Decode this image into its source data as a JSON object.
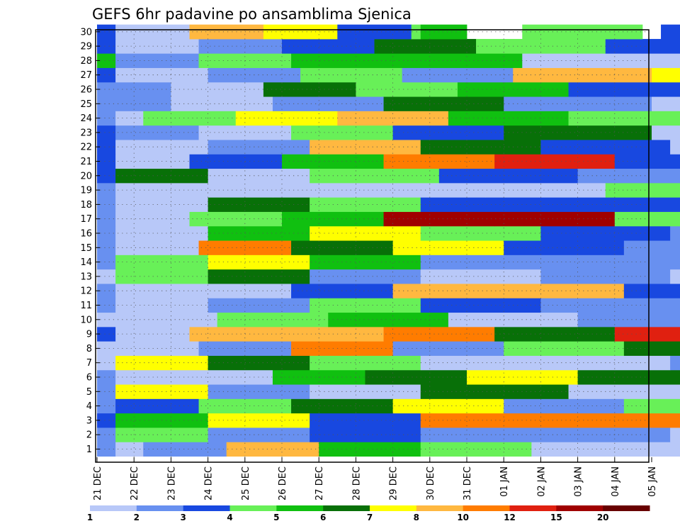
{
  "chart_data": {
    "type": "heatmap",
    "title": "GEFS 6hr padavine po ansamblima Sjenica",
    "xlabel": "",
    "ylabel": "",
    "x_tick_labels": [
      "21 DEC",
      "22 DEC",
      "23 DEC",
      "24 DEC",
      "25 DEC",
      "26 DEC",
      "27 DEC",
      "28 DEC",
      "29 DEC",
      "30 DEC",
      "31 DEC",
      "01 JAN",
      "02 JAN",
      "03 JAN",
      "04 JAN",
      "05 JAN"
    ],
    "y_tick_labels": [
      "1",
      "2",
      "3",
      "4",
      "5",
      "6",
      "7",
      "8",
      "9",
      "10",
      "11",
      "12",
      "13",
      "14",
      "15",
      "16",
      "17",
      "18",
      "19",
      "20",
      "21",
      "22",
      "23",
      "24",
      "25",
      "26",
      "27",
      "28",
      "29",
      "30"
    ],
    "x_steps_per_day": 4,
    "members": 30,
    "grid": true,
    "colorbar": {
      "levels": [
        "1",
        "2",
        "3",
        "4",
        "5",
        "6",
        "7",
        "8",
        "10",
        "12",
        "15",
        "20"
      ],
      "colors": [
        "#b8c8f8",
        "#6890f0",
        "#1848e0",
        "#68f058",
        "#10c010",
        "#087008",
        "#ffff00",
        "#ffb840",
        "#ff7c00",
        "#e02010",
        "#a00000",
        "#680000"
      ]
    },
    "rows": {
      "30": "6|0 3|2 1|8 8|8 7|8 3|8 4|1 5|5 0|6 4|8 4|5 0|2 3|3 4|6 3|4 2|5 2|6 1|29 8|30 1",
      "29": "6|0 3|2 1|9 2|9 3|10 6|11 4|14 3|16 4|24 1",
      "28": "8|0 5|2 2|9 4|10 5|11 5|14 1|16 1|21 1|42 1|46 1|51 4|54 1|55 11|56 9|57 6|58 2",
      "27": "7|0 3|2 1|10 2|10 4|11 2|12 8|15 7|16 3|17",
      "26": "8|0 2|8 1|10 6|10 4|11 5|12 3|13 7|14 1|16 5|18 1|19 1|20 8|20 6|21 1|23 1|54 6|55 9|56 1|57",
      "25": "6|0 2|8 1|11 2|12 6|13 2|16 1|19",
      "24": "5|0 2|2 1|3 4|10 7|11 8|12 5|13 4|14 4|15 7|16 5|17 6|18 1|19 1|20 1|24 7|53 2|54 1|57 3|58 2|59",
      "23": "6|0 3|2 2|9 1|10 4|11 3|12 6|16 1|17 1|19 1|20",
      "22": "7|0 3|2 1|10 2|11 8|12 6|13 3|14 1|15 2|16 3|17 1|18 1|59",
      "21": "5|0 3|2 1|8 3|10 5|11 9|12 10|13 3|14 8|15 2|16 1|17 2|18 1|19 1|20 1|21 1|22 1|23 1|24 1|25 1|26 1|27 1|28 1|29 1|30 1|31 1|32 1|33 1|34 1|35 1|36 1|37 1|38 1|39 1|40 1|41 1|42 1|43 1|44 1|45 1|46 1|47 1|48 1|49 1|50 1|51 1|52 1|53 2|54 1|55",
      "20": "5|0 3|2 6|10 1|11 4|14 3|15 2|17",
      "19": "5|0 2|2 1|8 1|9 1|11 1|12 1|13 4|14 2|15 1|17 1|55",
      "18": "6|0 2|2 1|10 6|11 4|12 3|17 3|18",
      "17": "6|0 2|2 1|8 4|10 5|11 11|12 11|13 4|14 1|15 6|16 2|17 4|18 2|19 5|44 3|45 2|46 1|47 1|48 1|54",
      "16": "8|0 2|2 1|10 5|11 7|12 4|13 3|14 2|15 2|16 1|17",
      "15": "5|0 2|2 1|9 9|10 6|11 7|12 3|13 2|14 3|15 8|16 2|17 1|18 1|56 1|57 1|58 1|59",
      "14": "5|0 2|2 4|10 7|11 5|12 2|13 2|14 2|15 1|16 11|17 2|18 1|19 2|20 2|46 1|47 1|55 1|56 1|57 1|58 1|59",
      "13": "6|0 1|2 4|10 6|11 2|12 1|13 2|14 1|15 1|16 8|17 9|18 5|19 4|20 2|21 2|22 1|23 1|50 1|55 1|56",
      "12": "9|0 2|2 1|9 1|10 3|11 8|12 8|13 3|14 7|15 10|16 9|17 2|18 2|19 1|41 1|48 1|49 1|50 2|57 4|58",
      "11": "9|0 2|2 1|10 2|11 4|12 3|13 2|15 2|16 2|17 1|44 1|45",
      "10": "6|0 1|2 1|11 4|12 5|13 1|14 2|15 8|16 5|17 1|50 3|51",
      "9": "7|0 3|2 1|8 8|10 8|11 9|12 6|13 10|14 4|15 6|16 7|17 4|18 1|19 1|20 1|31 1|32",
      "8": "5|0 1|2 1|9 2|10 9|11 2|12 4|13 6|14 2|15 5|16 1|17 7|18 6|19 1|20 3|21 1|22",
      "7": "5|0 1|2 7|10 6|11 4|12 1|13 1|14 2|15 1|16 1|17 1|18 1|19 1|20",
      "6": "6|0 2|2 1|8 1|9 5|10 6|11 7|12 6|13 4|14 1|15 4|16 2|17 2|18 3|19 1|20 1|21",
      "5": "8|0 2|2 7|10 2|11 1|12 6|16 1|17 5|18 1|45",
      "4": "8|0 2|2 3|9 4|10 6|11 7|12 2|13 4|14 6|15 7|16 5|17 2|18",
      "3": "8|0 3|2 5|10 7|11 3|12 9|13 9|14 9|15 8|16 2|17 1|18 1|19 1|20 1|21 1|22",
      "2": "8|0 2|2 4|10 2|11 3|12 2|13 2|14 1|15 1|16 1|17 1|18 1|19 1|20",
      "1": "8|0 2|2 1|3 2|9 8|10 5|11 4|12 1|13 1|14 1|15 1|16 4|17 5|18 5|19 4|20 3|21 4|22 2|23 1|24 1|25 1|26 1|27 1|28 1|29 1|30 1|31 1|32 1|33 1|34 1|35 1|36 1|37 1|38 1|39 1|40 1|41 1|42 1|43 1|44 1|45 1|46 1|47 1|48 1|49 1|50 1|51 1|52 1|53 1|54 12|55 11|56 6|57 2|58 1|59"
    }
  }
}
